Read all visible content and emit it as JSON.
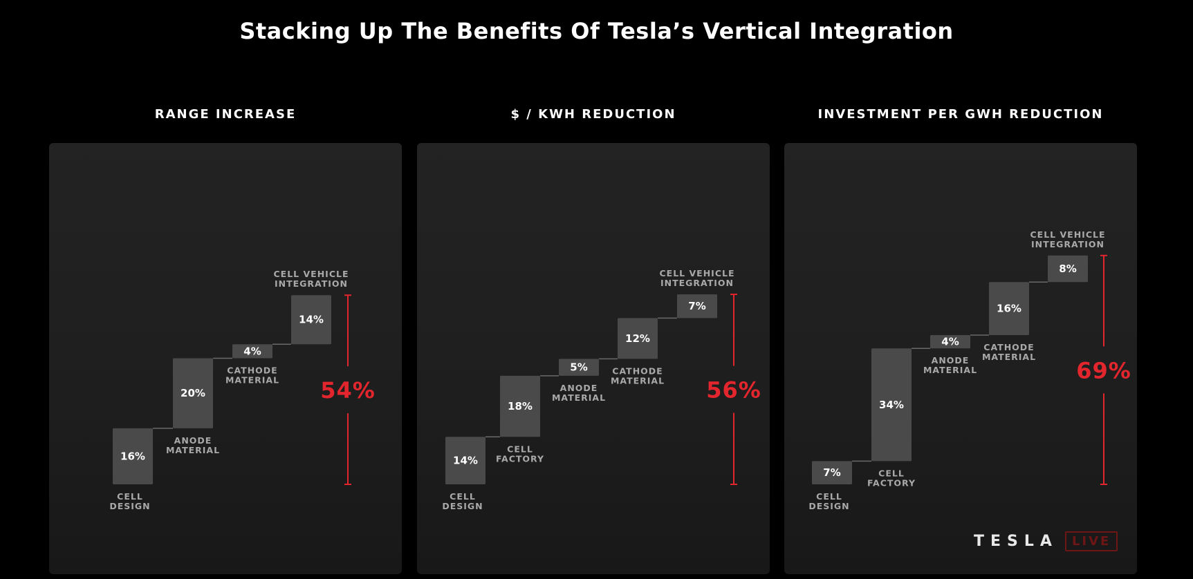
{
  "title": "Stacking Up The Benefits Of Tesla’s Vertical Integration",
  "colors": {
    "bar": "#4a4a4a",
    "connector": "#6a6a6a",
    "total": "#e3262e",
    "label": "#a9a9a9"
  },
  "chart_data": [
    {
      "type": "bar",
      "subtype": "waterfall",
      "title": "RANGE INCREASE",
      "categories": [
        "CELL DESIGN",
        "ANODE MATERIAL",
        "CATHODE MATERIAL",
        "CELL VEHICLE INTEGRATION"
      ],
      "values": [
        16,
        20,
        4,
        14
      ],
      "value_labels": [
        "16%",
        "20%",
        "4%",
        "14%"
      ],
      "total": 54,
      "total_label": "54%"
    },
    {
      "type": "bar",
      "subtype": "waterfall",
      "title": "$ / KWH REDUCTION",
      "categories": [
        "CELL DESIGN",
        "CELL FACTORY",
        "ANODE MATERIAL",
        "CATHODE MATERIAL",
        "CELL VEHICLE INTEGRATION"
      ],
      "values": [
        14,
        18,
        5,
        12,
        7
      ],
      "value_labels": [
        "14%",
        "18%",
        "5%",
        "12%",
        "7%"
      ],
      "total": 56,
      "total_label": "56%"
    },
    {
      "type": "bar",
      "subtype": "waterfall",
      "title": "INVESTMENT PER GWH REDUCTION",
      "categories": [
        "CELL DESIGN",
        "CELL FACTORY",
        "ANODE MATERIAL",
        "CATHODE MATERIAL",
        "CELL VEHICLE INTEGRATION"
      ],
      "values": [
        7,
        34,
        4,
        16,
        8
      ],
      "value_labels": [
        "7%",
        "34%",
        "4%",
        "16%",
        "8%"
      ],
      "total": 69,
      "total_label": "69%"
    }
  ],
  "logo": {
    "word": "TESLA",
    "badge": "LIVE"
  }
}
